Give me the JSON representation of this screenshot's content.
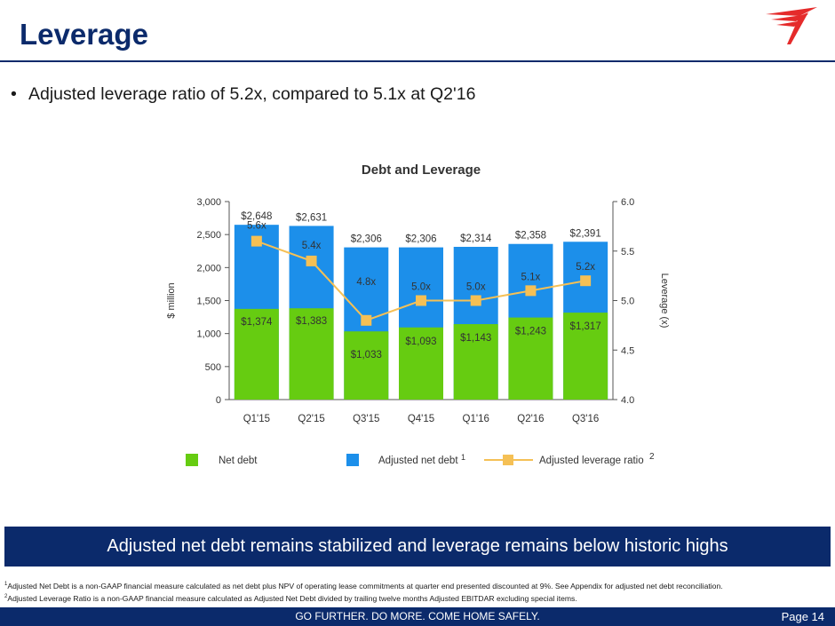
{
  "slide": {
    "title": "Leverage",
    "bullet": "Adjusted leverage ratio of 5.2x, compared to 5.1x at Q2'16",
    "banner": "Adjusted net debt remains stabilized and leverage remains below historic highs",
    "footnotes": [
      {
        "marker": "1",
        "text": "Adjusted Net Debt is a non-GAAP financial measure calculated as net debt plus NPV of operating lease commitments at quarter end presented discounted at 9%. See Appendix for adjusted net debt reconciliation."
      },
      {
        "marker": "2",
        "text": "Adjusted Leverage Ratio is a non-GAAP financial measure calculated as Adjusted Net Debt divided by trailing twelve months Adjusted EBITDAR excluding special items."
      }
    ],
    "tagline": "GO FURTHER. DO MORE. COME HOME SAFELY.",
    "page": "Page 14"
  },
  "colors": {
    "navy": "#0b2a6b",
    "net_debt": "#66cc11",
    "adjusted_net_debt": "#1c8fea",
    "ratio_line": "#f5c055",
    "logo_red": "#e52b2b"
  },
  "chart_data": {
    "type": "bar",
    "title": "Debt and Leverage",
    "ylabel": "$ million",
    "y2label": "Leverage (x)",
    "ylim": [
      0,
      3000
    ],
    "y2lim": [
      4.0,
      6.0
    ],
    "y_ticks": [
      "0",
      "500",
      "1,000",
      "1,500",
      "2,000",
      "2,500",
      "3,000"
    ],
    "y2_ticks": [
      "4.0",
      "4.5",
      "5.0",
      "5.5",
      "6.0"
    ],
    "categories": [
      "Q1'15",
      "Q2'15",
      "Q3'15",
      "Q4'15",
      "Q1'16",
      "Q2'16",
      "Q3'16"
    ],
    "series": [
      {
        "name": "Net debt",
        "values": [
          1374,
          1383,
          1033,
          1093,
          1143,
          1243,
          1317
        ],
        "labels": [
          "$1,374",
          "$1,383",
          "$1,033",
          "$1,093",
          "$1,143",
          "$1,243",
          "$1,317"
        ]
      },
      {
        "name": "Adjusted net debt",
        "footnote": "1",
        "values": [
          2648,
          2631,
          2306,
          2306,
          2314,
          2358,
          2391
        ],
        "labels": [
          "$2,648",
          "$2,631",
          "$2,306",
          "$2,306",
          "$2,314",
          "$2,358",
          "$2,391"
        ]
      },
      {
        "name": "Adjusted leverage ratio",
        "footnote": "2",
        "axis": "secondary",
        "type": "line",
        "values": [
          5.6,
          5.4,
          4.8,
          5.0,
          5.0,
          5.1,
          5.2
        ],
        "labels": [
          "5.6x",
          "5.4x",
          "4.8x",
          "5.0x",
          "5.0x",
          "5.1x",
          "5.2x"
        ]
      }
    ],
    "legend": "bottom"
  }
}
